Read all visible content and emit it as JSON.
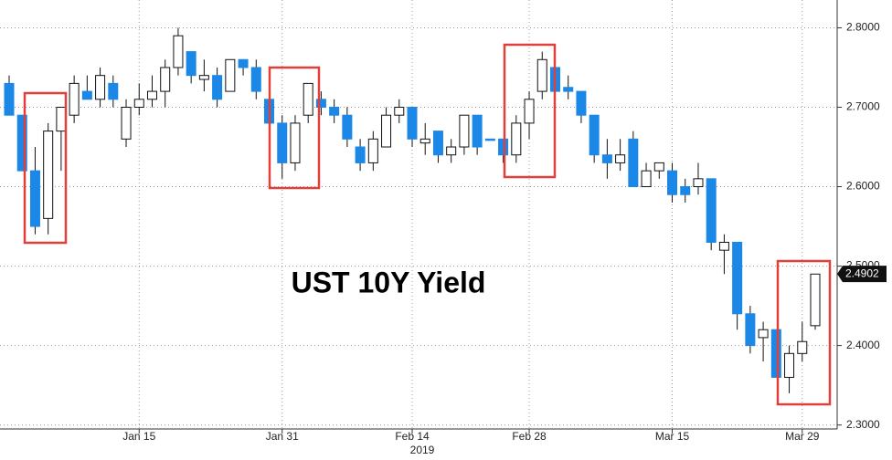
{
  "chart_data": {
    "type": "candlestick",
    "title": "UST 10Y Yield",
    "year_label": "2019",
    "categories": [
      null,
      null,
      null,
      null,
      null,
      null,
      null,
      null,
      null,
      null,
      "Jan 15",
      null,
      null,
      null,
      null,
      null,
      null,
      null,
      null,
      null,
      null,
      "Jan 31",
      null,
      null,
      null,
      null,
      null,
      null,
      null,
      null,
      null,
      "Feb 14",
      null,
      null,
      null,
      null,
      null,
      null,
      null,
      null,
      "Feb 28",
      null,
      null,
      null,
      null,
      null,
      null,
      null,
      null,
      null,
      null,
      "Mar 15",
      null,
      null,
      null,
      null,
      null,
      null,
      null,
      null,
      null,
      "Mar 29",
      null
    ],
    "open": [
      2.73,
      2.69,
      2.62,
      2.56,
      2.67,
      2.69,
      2.72,
      2.71,
      2.73,
      2.66,
      2.7,
      2.71,
      2.72,
      2.75,
      2.77,
      2.735,
      2.74,
      2.72,
      2.76,
      2.75,
      2.71,
      2.68,
      2.63,
      2.69,
      2.71,
      2.7,
      2.69,
      2.65,
      2.63,
      2.65,
      2.69,
      2.7,
      2.655,
      2.67,
      2.64,
      2.65,
      2.69,
      2.66,
      2.66,
      2.64,
      2.68,
      2.72,
      2.75,
      2.725,
      2.72,
      2.69,
      2.64,
      2.63,
      2.66,
      2.6,
      2.62,
      2.62,
      2.6,
      2.6,
      2.61,
      2.52,
      2.53,
      2.44,
      2.41,
      2.42,
      2.36,
      2.39,
      2.425
    ],
    "high": [
      2.74,
      2.69,
      2.65,
      2.68,
      2.7,
      2.74,
      2.74,
      2.75,
      2.74,
      2.71,
      2.73,
      2.74,
      2.76,
      2.8,
      2.77,
      2.76,
      2.75,
      2.76,
      2.76,
      2.76,
      2.73,
      2.69,
      2.69,
      2.73,
      2.72,
      2.71,
      2.7,
      2.66,
      2.67,
      2.7,
      2.71,
      2.7,
      2.68,
      2.67,
      2.66,
      2.69,
      2.69,
      2.66,
      2.66,
      2.69,
      2.72,
      2.77,
      2.76,
      2.74,
      2.72,
      2.69,
      2.66,
      2.66,
      2.67,
      2.63,
      2.63,
      2.63,
      2.61,
      2.63,
      2.61,
      2.54,
      2.53,
      2.45,
      2.43,
      2.42,
      2.4,
      2.43,
      2.49
    ],
    "low": [
      2.69,
      2.62,
      2.54,
      2.54,
      2.62,
      2.68,
      2.71,
      2.7,
      2.7,
      2.65,
      2.69,
      2.7,
      2.7,
      2.74,
      2.73,
      2.72,
      2.7,
      2.72,
      2.74,
      2.71,
      2.67,
      2.61,
      2.62,
      2.68,
      2.69,
      2.68,
      2.65,
      2.62,
      2.62,
      2.65,
      2.68,
      2.65,
      2.64,
      2.63,
      2.63,
      2.64,
      2.64,
      2.66,
      2.63,
      2.63,
      2.66,
      2.71,
      2.72,
      2.71,
      2.68,
      2.63,
      2.61,
      2.62,
      2.6,
      2.6,
      2.61,
      2.58,
      2.58,
      2.59,
      2.52,
      2.49,
      2.42,
      2.39,
      2.38,
      2.36,
      2.34,
      2.38,
      2.42
    ],
    "close": [
      2.69,
      2.62,
      2.55,
      2.67,
      2.7,
      2.73,
      2.71,
      2.74,
      2.71,
      2.7,
      2.71,
      2.72,
      2.75,
      2.79,
      2.74,
      2.74,
      2.71,
      2.76,
      2.75,
      2.72,
      2.68,
      2.63,
      2.68,
      2.73,
      2.7,
      2.69,
      2.66,
      2.63,
      2.66,
      2.69,
      2.7,
      2.66,
      2.66,
      2.64,
      2.65,
      2.69,
      2.65,
      2.659,
      2.64,
      2.68,
      2.71,
      2.76,
      2.72,
      2.72,
      2.69,
      2.64,
      2.63,
      2.64,
      2.6,
      2.62,
      2.63,
      2.59,
      2.59,
      2.61,
      2.53,
      2.53,
      2.44,
      2.4,
      2.42,
      2.36,
      2.39,
      2.405,
      2.49
    ],
    "up_color": "#ffffff",
    "down_color": "#1b87e6",
    "ylim": [
      2.295,
      2.835
    ],
    "yticks": [
      {
        "value": 2.3,
        "label": "2.3000"
      },
      {
        "value": 2.4,
        "label": "2.4000"
      },
      {
        "value": 2.5,
        "label": "2.5000"
      },
      {
        "value": 2.6,
        "label": "2.6000"
      },
      {
        "value": 2.7,
        "label": "2.7000"
      },
      {
        "value": 2.8,
        "label": "2.8000"
      }
    ],
    "last_value": {
      "value": 2.4902,
      "label": "2.4902"
    },
    "grid": true
  }
}
